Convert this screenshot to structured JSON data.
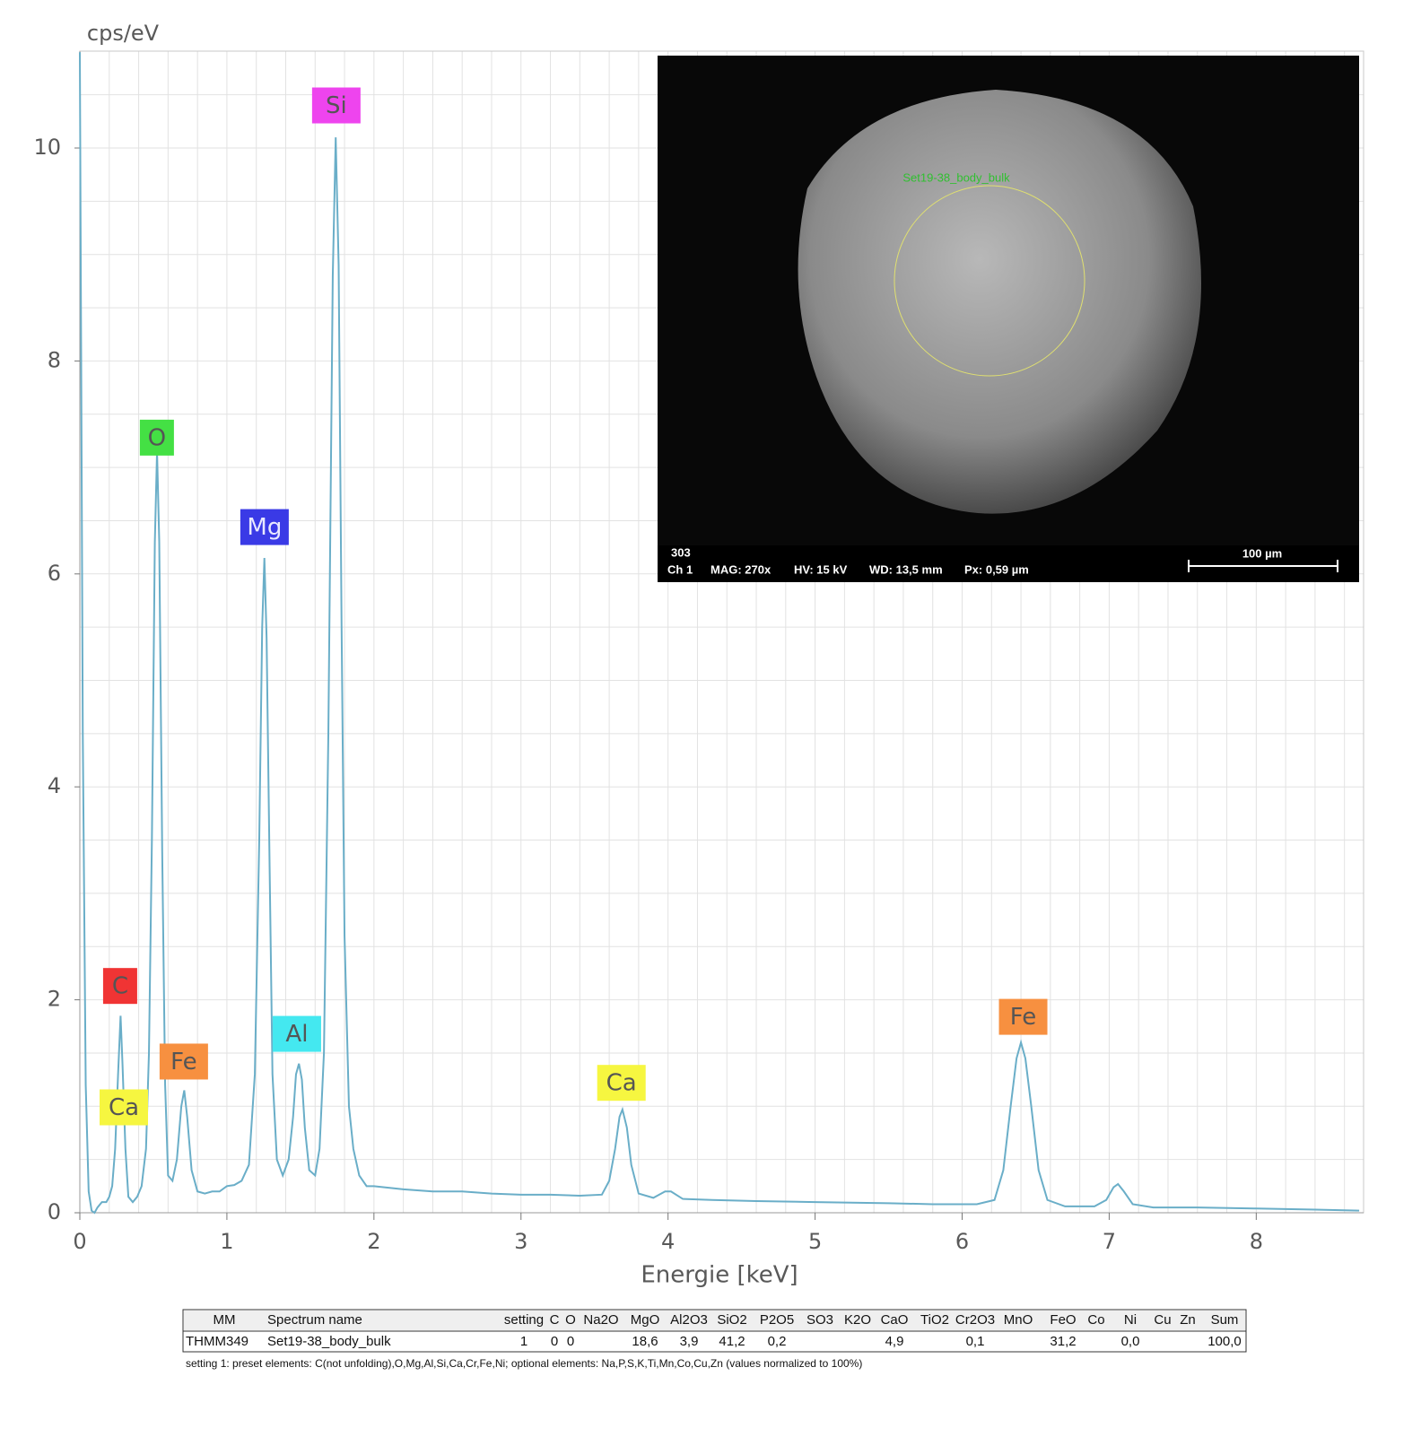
{
  "chart_data": {
    "type": "line",
    "y_label": "cps/eV",
    "x_label": "Energie [keV]",
    "xlim": [
      0,
      8.73
    ],
    "ylim": [
      0,
      10.91
    ],
    "xticks": [
      0,
      1,
      2,
      3,
      4,
      5,
      6,
      7,
      8
    ],
    "yticks": [
      0,
      2,
      4,
      6,
      8,
      10
    ],
    "xgrid": [
      0.2,
      0.4,
      0.6,
      0.8,
      1,
      1.2,
      1.4,
      1.6,
      1.8,
      2,
      2.2,
      2.4,
      2.6,
      2.8,
      3,
      3.2,
      3.4,
      3.6,
      3.8,
      4,
      4.2,
      4.4,
      4.6,
      4.8,
      5,
      5.2,
      5.4,
      5.6,
      5.8,
      6,
      6.2,
      6.4,
      6.6,
      6.8,
      7,
      7.2,
      7.4,
      7.6,
      7.8,
      8,
      8.2,
      8.4,
      8.6
    ],
    "ygrid": [
      0.5,
      1,
      1.5,
      2,
      2.5,
      3,
      3.5,
      4,
      4.5,
      5,
      5.5,
      6,
      6.5,
      7,
      7.5,
      8,
      8.5,
      9,
      9.5,
      10,
      10.5
    ],
    "series": [
      {
        "color": "#6aaec8",
        "x": [
          0,
          0.02,
          0.04,
          0.06,
          0.08,
          0.1,
          0.12,
          0.15,
          0.18,
          0.2,
          0.22,
          0.24,
          0.26,
          0.277,
          0.29,
          0.31,
          0.33,
          0.36,
          0.39,
          0.42,
          0.45,
          0.47,
          0.49,
          0.51,
          0.525,
          0.54,
          0.56,
          0.58,
          0.6,
          0.63,
          0.66,
          0.69,
          0.71,
          0.73,
          0.76,
          0.8,
          0.85,
          0.9,
          0.95,
          1,
          1.05,
          1.1,
          1.15,
          1.19,
          1.22,
          1.24,
          1.255,
          1.27,
          1.29,
          1.31,
          1.34,
          1.38,
          1.42,
          1.45,
          1.47,
          1.49,
          1.51,
          1.53,
          1.56,
          1.6,
          1.63,
          1.66,
          1.69,
          1.72,
          1.74,
          1.76,
          1.78,
          1.8,
          1.83,
          1.86,
          1.9,
          1.95,
          2,
          2.2,
          2.4,
          2.6,
          2.8,
          3,
          3.2,
          3.4,
          3.55,
          3.6,
          3.64,
          3.67,
          3.69,
          3.72,
          3.75,
          3.8,
          3.9,
          3.98,
          4.02,
          4.1,
          4.3,
          4.6,
          5,
          5.5,
          5.8,
          6.1,
          6.22,
          6.28,
          6.33,
          6.37,
          6.4,
          6.43,
          6.47,
          6.52,
          6.58,
          6.7,
          6.9,
          6.98,
          7.03,
          7.06,
          7.1,
          7.16,
          7.3,
          7.6,
          8,
          8.4,
          8.7
        ],
        "values": [
          10.9,
          4.5,
          1.2,
          0.2,
          0.02,
          0,
          0.05,
          0.1,
          0.1,
          0.15,
          0.25,
          0.6,
          1.3,
          1.85,
          1.4,
          0.6,
          0.15,
          0.1,
          0.15,
          0.25,
          0.6,
          1.5,
          3.5,
          6.3,
          7.15,
          6.3,
          3.4,
          1.2,
          0.35,
          0.3,
          0.5,
          1,
          1.15,
          0.9,
          0.4,
          0.2,
          0.18,
          0.2,
          0.2,
          0.25,
          0.26,
          0.3,
          0.45,
          1.3,
          3.5,
          5.5,
          6.15,
          5.4,
          3.3,
          1.3,
          0.5,
          0.35,
          0.5,
          0.9,
          1.3,
          1.4,
          1.25,
          0.8,
          0.4,
          0.35,
          0.6,
          1.5,
          4.5,
          8.8,
          10.1,
          8.9,
          5.5,
          2.6,
          1,
          0.6,
          0.35,
          0.25,
          0.25,
          0.22,
          0.2,
          0.2,
          0.18,
          0.17,
          0.17,
          0.16,
          0.17,
          0.3,
          0.6,
          0.9,
          0.97,
          0.8,
          0.45,
          0.18,
          0.14,
          0.2,
          0.2,
          0.13,
          0.12,
          0.11,
          0.1,
          0.09,
          0.08,
          0.08,
          0.12,
          0.4,
          1,
          1.45,
          1.6,
          1.45,
          1,
          0.4,
          0.12,
          0.06,
          0.06,
          0.12,
          0.24,
          0.27,
          0.2,
          0.08,
          0.05,
          0.05,
          0.04,
          0.03,
          0.02
        ]
      }
    ],
    "annotations": [
      {
        "text": "Si",
        "x": 1.744,
        "y": 10.4,
        "color": "#ee44ee",
        "text_color": "#555555"
      },
      {
        "text": "O",
        "x": 0.524,
        "y": 7.28,
        "color": "#44e044",
        "text_color": "#555555"
      },
      {
        "text": "Mg",
        "x": 1.256,
        "y": 6.44,
        "color": "#3a3ae6",
        "text_color": "#e8e8ff"
      },
      {
        "text": "C",
        "x": 0.274,
        "y": 2.13,
        "color": "#f03434",
        "text_color": "#555555"
      },
      {
        "text": "Ca",
        "x": 0.299,
        "y": 0.99,
        "color": "#f6f640",
        "text_color": "#555555"
      },
      {
        "text": "Fe",
        "x": 0.707,
        "y": 1.42,
        "color": "#f79040",
        "text_color": "#555555"
      },
      {
        "text": "Al",
        "x": 1.476,
        "y": 1.68,
        "color": "#44e8f0",
        "text_color": "#555555"
      },
      {
        "text": "Ca",
        "x": 3.683,
        "y": 1.22,
        "color": "#f6f640",
        "text_color": "#555555"
      },
      {
        "text": "Fe",
        "x": 6.415,
        "y": 1.84,
        "color": "#f79040",
        "text_color": "#555555"
      }
    ]
  },
  "inset": {
    "region_label": "Set19-38_body_bulk",
    "id": "303",
    "channel": "Ch 1",
    "mag": "MAG: 270x",
    "hv": "HV: 15 kV",
    "wd": "WD: 13,5 mm",
    "px": "Px: 0,59 µm",
    "scale": "100 µm"
  },
  "table": {
    "header": [
      "MM",
      "Spectrum name",
      "setting",
      "C",
      "O",
      "Na2O",
      "MgO",
      "Al2O3",
      "SiO2",
      "P2O5",
      "SO3",
      "K2O",
      "CaO",
      "TiO2",
      "Cr2O3",
      "MnO",
      "FeO",
      "Co",
      "Ni",
      "Cu",
      "Zn",
      "Sum"
    ],
    "rows": [
      [
        "THMM349",
        "Set19-38_body_bulk",
        "1",
        "0",
        "0",
        null,
        "18,6",
        "3,9",
        "41,2",
        "0,2",
        null,
        null,
        "4,9",
        null,
        "0,1",
        null,
        "31,2",
        null,
        "0,0",
        null,
        null,
        "100,0"
      ]
    ]
  },
  "footnote": "setting 1: preset elements: C(not unfolding),O,Mg,Al,Si,Ca,Cr,Fe,Ni; optional elements: Na,P,S,K,Ti,Mn,Co,Cu,Zn (values normalized to 100%)"
}
